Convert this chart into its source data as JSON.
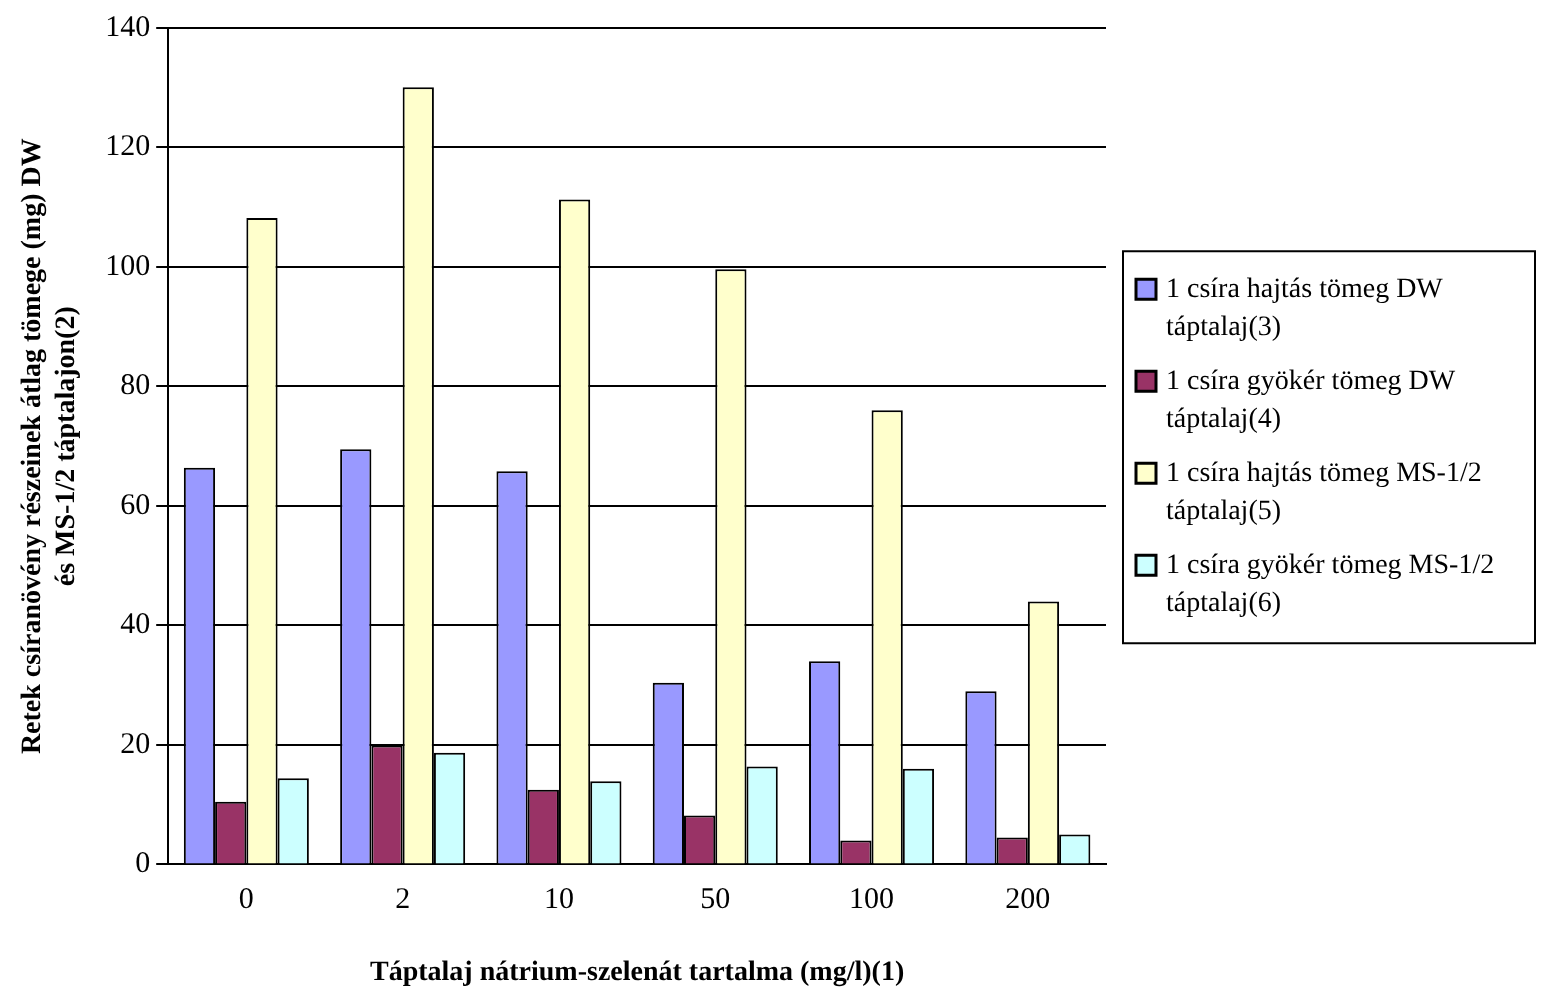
{
  "chart_data": {
    "type": "bar",
    "xlabel": "Táptalaj nátrium-szelenát tartalma (mg/l)(1)",
    "ylabel": "Retek csíranövény részeinek átlag tömege (mg) DW és MS-1/2 táptalajon(2)",
    "categories": [
      "0",
      "2",
      "10",
      "50",
      "100",
      "200"
    ],
    "series": [
      {
        "name": "1 csíra hajtás tömeg DW táptalaj(3)",
        "color": "#9999ff",
        "values": [
          66.4,
          69.5,
          65.8,
          30.4,
          34,
          29
        ]
      },
      {
        "name": "1 csíra gyökér tömeg DW táptalaj(4)",
        "color": "#993366",
        "values": [
          10.5,
          19.9,
          12.5,
          8.2,
          4,
          4.5
        ]
      },
      {
        "name": "1 csíra hajtás tömeg MS-1/2 táptalaj(5)",
        "color": "#ffffcc",
        "values": [
          108.2,
          130.1,
          111.3,
          99.6,
          76,
          44
        ]
      },
      {
        "name": "1 csíra gyökér tömeg MS-1/2 táptalaj(6)",
        "color": "#ccffff",
        "values": [
          14.4,
          18.7,
          13.9,
          16.4,
          16,
          5
        ]
      }
    ],
    "ylim": [
      0,
      140
    ],
    "yticks": [
      0,
      20,
      40,
      60,
      80,
      100,
      120,
      140
    ],
    "grid": "y",
    "legend": "right"
  }
}
